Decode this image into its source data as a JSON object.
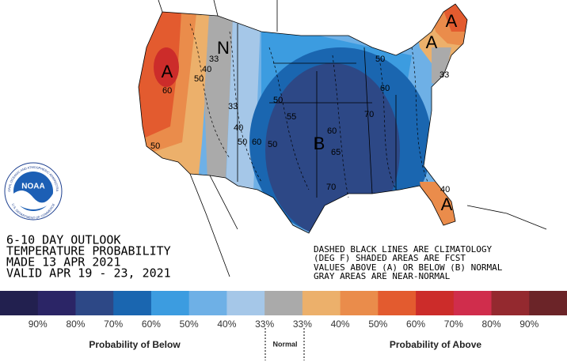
{
  "map": {
    "labels": [
      "A",
      "N",
      "B",
      "A",
      "A",
      "A"
    ],
    "contours": [
      "50",
      "40",
      "33",
      "50",
      "60",
      "33",
      "40",
      "50",
      "60",
      "50",
      "55",
      "60",
      "65",
      "70",
      "70",
      "60",
      "50",
      "50",
      "33",
      "40"
    ]
  },
  "logo": {
    "name": "NOAA",
    "ring_top": "NATIONAL OCEANIC AND ATMOSPHERIC ADMINISTRATION",
    "ring_bottom": "U.S. DEPARTMENT OF COMMERCE"
  },
  "outlook": [
    "6-10 DAY OUTLOOK",
    "TEMPERATURE PROBABILITY",
    "MADE  13 APR 2021",
    "VALID  APR 19 - 23, 2021"
  ],
  "notes": [
    "DASHED BLACK LINES ARE CLIMATOLOGY",
    "(DEG F) SHADED AREAS ARE FCST",
    "VALUES ABOVE (A) OR BELOW (B) NORMAL",
    "GRAY AREAS ARE NEAR-NORMAL"
  ],
  "legend": {
    "colors": [
      "#22204f",
      "#2b2566",
      "#2d4886",
      "#1a66b0",
      "#3c9ce0",
      "#6eb0e6",
      "#a5c7e8",
      "#aaaaaa",
      "#ecb06b",
      "#ea8c4b",
      "#e35b2f",
      "#cc2c2a",
      "#d02d4c",
      "#94292f",
      "#6b2428"
    ],
    "labels": [
      "90%",
      "80%",
      "70%",
      "60%",
      "50%",
      "40%",
      "33%",
      "33%",
      "40%",
      "50%",
      "60%",
      "70%",
      "80%",
      "90%"
    ],
    "below": "Probability of Below",
    "normal": "Normal",
    "above": "Probability of Above"
  }
}
